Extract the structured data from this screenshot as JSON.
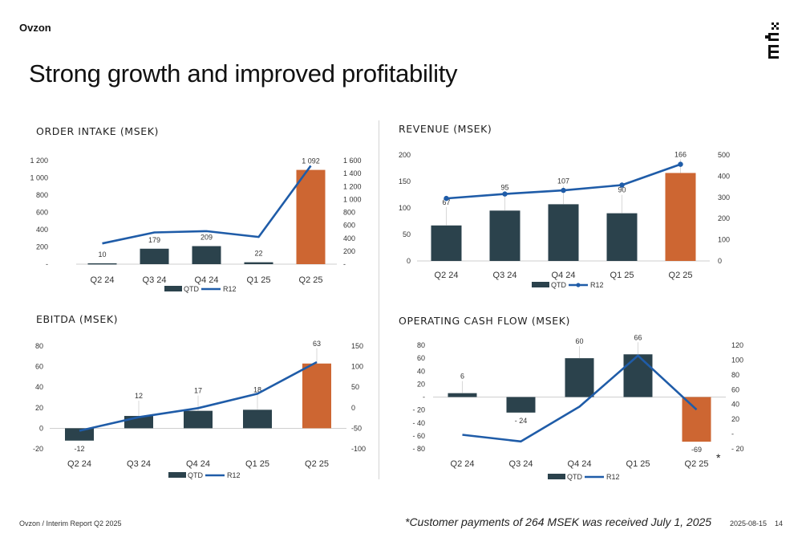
{
  "header": {
    "brand": "Ovzon",
    "title": "Strong growth and improved profitability"
  },
  "footer": {
    "left": "Ovzon / Interim Report Q2 2025",
    "note": "*Customer payments of 264 MSEK was received July 1, 2025",
    "date": "2025-08-15",
    "page": "14",
    "asterisk": "*"
  },
  "colors": {
    "qtd_bar": "#2b424c",
    "highlight_bar": "#cd6632",
    "r12_line": "#1f5ca8"
  },
  "chart_data": [
    {
      "type": "bar",
      "title": "ORDER INTAKE (MSEK)",
      "categories": [
        "Q2 24",
        "Q3 24",
        "Q4 24",
        "Q1 25",
        "Q2 25"
      ],
      "series": [
        {
          "name": "QTD",
          "type": "bar",
          "axis": "left",
          "values": [
            10,
            179,
            209,
            22,
            1092
          ],
          "labels": [
            "10",
            "179",
            "209",
            "22",
            "1 092"
          ]
        },
        {
          "name": "R12",
          "type": "line",
          "axis": "right",
          "values": [
            320,
            490,
            510,
            420,
            1520
          ]
        }
      ],
      "left_axis": {
        "ylim": [
          0,
          1200
        ],
        "ticks": [
          0,
          200,
          400,
          600,
          800,
          1000,
          1200
        ],
        "tick_labels": [
          "-",
          "200",
          "400",
          "600",
          "800",
          "1 000",
          "1 200"
        ]
      },
      "right_axis": {
        "ylim": [
          0,
          1600
        ],
        "ticks": [
          0,
          200,
          400,
          600,
          800,
          1000,
          1200,
          1400,
          1600
        ],
        "tick_labels": [
          "-",
          "200",
          "400",
          "600",
          "800",
          "1 000",
          "1 200",
          "1 400",
          "1 600"
        ]
      },
      "legend": [
        "QTD",
        "R12"
      ],
      "legend_position": "bottom",
      "line_markers": false
    },
    {
      "type": "bar",
      "title": "REVENUE (MSEK)",
      "categories": [
        "Q2 24",
        "Q3 24",
        "Q4 24",
        "Q1 25",
        "Q2 25"
      ],
      "series": [
        {
          "name": "QTD",
          "type": "bar",
          "axis": "left",
          "values": [
            67,
            95,
            107,
            90,
            166
          ],
          "labels": [
            "67",
            "95",
            "107",
            "90",
            "166"
          ]
        },
        {
          "name": "R12",
          "type": "line",
          "axis": "right",
          "values": [
            295,
            316,
            333,
            358,
            456
          ]
        }
      ],
      "left_axis": {
        "ylim": [
          0,
          200
        ],
        "ticks": [
          0,
          50,
          100,
          150,
          200
        ],
        "tick_labels": [
          "0",
          "50",
          "100",
          "150",
          "200"
        ]
      },
      "right_axis": {
        "ylim": [
          0,
          500
        ],
        "ticks": [
          0,
          100,
          200,
          300,
          400,
          500
        ],
        "tick_labels": [
          "0",
          "100",
          "200",
          "300",
          "400",
          "500"
        ]
      },
      "legend": [
        "QTD",
        "R12"
      ],
      "legend_position": "bottom",
      "line_markers": true
    },
    {
      "type": "bar",
      "title": "EBITDA (MSEK)",
      "categories": [
        "Q2 24",
        "Q3 24",
        "Q4 24",
        "Q1 25",
        "Q2 25"
      ],
      "series": [
        {
          "name": "QTD",
          "type": "bar",
          "axis": "left",
          "values": [
            -12,
            12,
            17,
            18,
            63
          ],
          "labels": [
            "-12",
            "12",
            "17",
            "18",
            "63"
          ]
        },
        {
          "name": "R12",
          "type": "line",
          "axis": "right",
          "values": [
            -56,
            -23,
            -1,
            34,
            111
          ]
        }
      ],
      "left_axis": {
        "ylim": [
          -20,
          80
        ],
        "ticks": [
          -20,
          0,
          20,
          40,
          60,
          80
        ],
        "tick_labels": [
          "-20",
          "0",
          "20",
          "40",
          "60",
          "80"
        ]
      },
      "right_axis": {
        "ylim": [
          -100,
          150
        ],
        "ticks": [
          -100,
          -50,
          0,
          50,
          100,
          150
        ],
        "tick_labels": [
          "-100",
          "-50",
          "0",
          "50",
          "100",
          "150"
        ]
      },
      "legend": [
        "QTD",
        "R12"
      ],
      "legend_position": "bottom",
      "line_markers": false
    },
    {
      "type": "bar",
      "title": "OPERATING CASH FLOW (MSEK)",
      "categories": [
        "Q2 24",
        "Q3 24",
        "Q4 24",
        "Q1 25",
        "Q2 25"
      ],
      "series": [
        {
          "name": "QTD",
          "type": "bar",
          "axis": "left",
          "values": [
            6,
            -24,
            60,
            66,
            -69
          ],
          "labels": [
            "6",
            "- 24",
            "60",
            "66",
            "-69"
          ]
        },
        {
          "name": "R12",
          "type": "line",
          "axis": "right",
          "values": [
            -1,
            -10,
            37,
            106,
            33
          ]
        }
      ],
      "left_axis": {
        "ylim": [
          -80,
          80
        ],
        "ticks": [
          -80,
          -60,
          -40,
          -20,
          0,
          20,
          40,
          60,
          80
        ],
        "tick_labels": [
          "- 80",
          "- 60",
          "- 40",
          "- 20",
          "-",
          "20",
          "40",
          "60",
          "80"
        ]
      },
      "right_axis": {
        "ylim": [
          -20,
          120
        ],
        "ticks": [
          -20,
          0,
          20,
          40,
          60,
          80,
          100,
          120
        ],
        "tick_labels": [
          "- 20",
          "-",
          "20",
          "40",
          "60",
          "80",
          "100",
          "120"
        ]
      },
      "legend": [
        "QTD",
        "R12"
      ],
      "legend_position": "bottom",
      "line_markers": false
    }
  ]
}
